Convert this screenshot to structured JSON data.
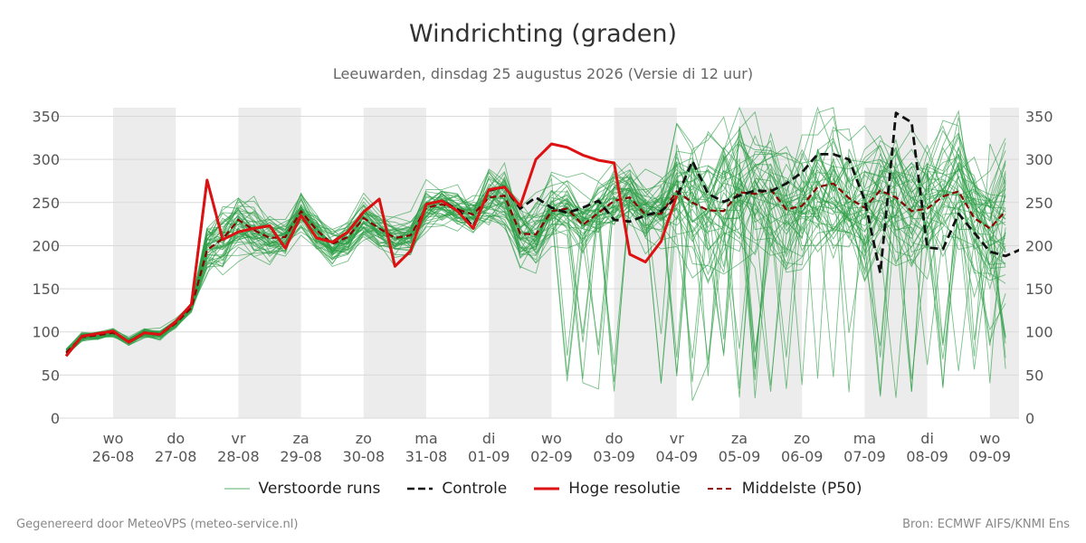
{
  "header": {
    "title": "Windrichting (graden)",
    "subtitle": "Leeuwarden, dinsdag 25 augustus 2026 (Versie di 12 uur)"
  },
  "footer": {
    "left": "Gegenereerd door MeteoVPS (meteo-service.nl)",
    "right": "Bron: ECMWF AIFS/KNMI Ens"
  },
  "colors": {
    "ensemble": "#2e9e46",
    "control": "#111111",
    "high_res": "#dd1111",
    "median": "#8b0000",
    "band": "#ececec",
    "grid": "#d9d9d9"
  },
  "chart_data": {
    "type": "line",
    "ylim": [
      0,
      360
    ],
    "yticks": [
      0,
      50,
      100,
      150,
      200,
      250,
      300,
      350
    ],
    "xlim": [
      -0.8,
      14
    ],
    "days": [
      {
        "weekday": "wo",
        "date": "26-08"
      },
      {
        "weekday": "do",
        "date": "27-08"
      },
      {
        "weekday": "vr",
        "date": "28-08"
      },
      {
        "weekday": "za",
        "date": "29-08"
      },
      {
        "weekday": "zo",
        "date": "30-08"
      },
      {
        "weekday": "ma",
        "date": "31-08"
      },
      {
        "weekday": "di",
        "date": "01-09"
      },
      {
        "weekday": "wo",
        "date": "02-09"
      },
      {
        "weekday": "do",
        "date": "03-09"
      },
      {
        "weekday": "vr",
        "date": "04-09"
      },
      {
        "weekday": "za",
        "date": "05-09"
      },
      {
        "weekday": "zo",
        "date": "06-09"
      },
      {
        "weekday": "ma",
        "date": "07-09"
      },
      {
        "weekday": "di",
        "date": "08-09"
      },
      {
        "weekday": "wo",
        "date": "09-09"
      }
    ],
    "shaded_days": [
      0,
      2,
      4,
      6,
      8,
      10,
      12,
      14
    ],
    "x_step": 0.25,
    "x_start": -0.75,
    "legend": {
      "ensemble": "Verstoorde runs",
      "control": "Controle",
      "high_res": "Hoge resolutie",
      "median": "Middelste (P50)"
    },
    "series": {
      "high_res": [
        72,
        95,
        98,
        101,
        88,
        99,
        97,
        112,
        132,
        276,
        207,
        216,
        220,
        223,
        197,
        235,
        209,
        204,
        216,
        239,
        254,
        176,
        194,
        248,
        252,
        240,
        220,
        265,
        268,
        246,
        300,
        318,
        314,
        305,
        299,
        296,
        190,
        181,
        205,
        258
      ],
      "control": [
        72,
        95,
        98,
        101,
        88,
        99,
        97,
        112,
        132,
        276,
        207,
        216,
        220,
        223,
        197,
        235,
        209,
        204,
        216,
        239,
        254,
        176,
        194,
        248,
        252,
        242,
        222,
        264,
        268,
        243,
        256,
        244,
        238,
        244,
        252,
        230,
        228,
        235,
        240,
        256,
        298,
        260,
        251,
        258,
        264,
        263,
        272,
        285,
        306,
        306,
        300,
        253,
        168,
        354,
        343,
        198,
        196,
        237,
        215,
        193,
        188,
        196
      ],
      "median": [
        76,
        94,
        96,
        99,
        89,
        99,
        97,
        110,
        128,
        195,
        208,
        230,
        218,
        209,
        210,
        240,
        218,
        202,
        210,
        232,
        220,
        209,
        212,
        244,
        248,
        242,
        236,
        256,
        258,
        214,
        213,
        240,
        243,
        224,
        238,
        252,
        256,
        236,
        237,
        263,
        250,
        241,
        240,
        262,
        260,
        265,
        242,
        246,
        268,
        272,
        255,
        244,
        264,
        256,
        240,
        243,
        257,
        263,
        232,
        220,
        240
      ]
    }
  }
}
